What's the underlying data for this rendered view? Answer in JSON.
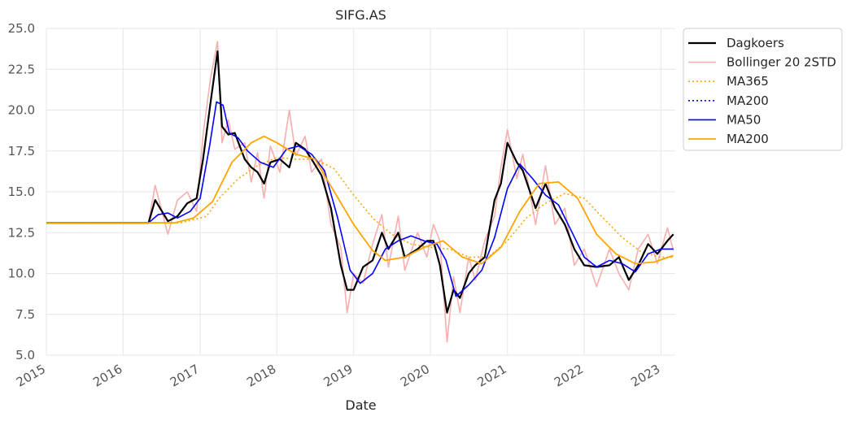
{
  "chart_data": {
    "type": "line",
    "title": "SIFG.AS",
    "xlabel": "Date",
    "ylabel": "",
    "xlim": [
      "2015-01-01",
      "2023-03-10"
    ],
    "ylim": [
      5.0,
      25.0
    ],
    "x_ticks": [
      "2015",
      "2016",
      "2017",
      "2018",
      "2019",
      "2020",
      "2021",
      "2022",
      "2023"
    ],
    "y_ticks": [
      "5.0",
      "7.5",
      "10.0",
      "12.5",
      "15.0",
      "17.5",
      "20.0",
      "22.5",
      "25.0"
    ],
    "grid": true,
    "legend_position": "outside-top-right",
    "series": [
      {
        "name": "Dagkoers",
        "color": "#000000",
        "style": "solid",
        "width": 2.2,
        "points": [
          [
            "2015-01-01",
            13.1
          ],
          [
            "2016-05-01",
            13.1
          ],
          [
            "2016-06-01",
            14.5
          ],
          [
            "2016-08-01",
            13.2
          ],
          [
            "2016-09-15",
            13.5
          ],
          [
            "2016-11-01",
            14.3
          ],
          [
            "2016-12-15",
            14.6
          ],
          [
            "2017-01-15",
            17.0
          ],
          [
            "2017-02-20",
            20.5
          ],
          [
            "2017-03-25",
            23.6
          ],
          [
            "2017-04-15",
            19.0
          ],
          [
            "2017-05-15",
            18.5
          ],
          [
            "2017-06-15",
            18.6
          ],
          [
            "2017-08-01",
            17.0
          ],
          [
            "2017-09-01",
            16.5
          ],
          [
            "2017-10-01",
            16.2
          ],
          [
            "2017-11-01",
            15.5
          ],
          [
            "2017-12-01",
            16.8
          ],
          [
            "2018-01-15",
            17.0
          ],
          [
            "2018-03-01",
            16.5
          ],
          [
            "2018-04-01",
            18.0
          ],
          [
            "2018-05-15",
            17.6
          ],
          [
            "2018-06-15",
            17.0
          ],
          [
            "2018-08-01",
            16.0
          ],
          [
            "2018-09-15",
            14.0
          ],
          [
            "2018-11-01",
            10.5
          ],
          [
            "2018-12-01",
            9.0
          ],
          [
            "2019-01-01",
            9.0
          ],
          [
            "2019-02-15",
            10.4
          ],
          [
            "2019-04-01",
            10.8
          ],
          [
            "2019-05-15",
            12.5
          ],
          [
            "2019-06-15",
            11.5
          ],
          [
            "2019-08-01",
            12.5
          ],
          [
            "2019-09-01",
            11.0
          ],
          [
            "2019-11-01",
            11.5
          ],
          [
            "2019-12-15",
            12.0
          ],
          [
            "2020-01-15",
            12.0
          ],
          [
            "2020-02-15",
            10.5
          ],
          [
            "2020-03-20",
            7.6
          ],
          [
            "2020-04-20",
            9.0
          ],
          [
            "2020-05-20",
            8.5
          ],
          [
            "2020-07-01",
            10.0
          ],
          [
            "2020-08-01",
            10.5
          ],
          [
            "2020-09-15",
            11.0
          ],
          [
            "2020-11-01",
            14.5
          ],
          [
            "2020-12-01",
            15.5
          ],
          [
            "2021-01-01",
            18.0
          ],
          [
            "2021-02-15",
            16.8
          ],
          [
            "2021-03-15",
            16.3
          ],
          [
            "2021-05-15",
            14.0
          ],
          [
            "2021-07-01",
            15.5
          ],
          [
            "2021-08-15",
            14.0
          ],
          [
            "2021-10-01",
            13.0
          ],
          [
            "2021-11-15",
            11.5
          ],
          [
            "2022-01-01",
            10.5
          ],
          [
            "2022-03-01",
            10.4
          ],
          [
            "2022-05-01",
            10.5
          ],
          [
            "2022-06-15",
            11.0
          ],
          [
            "2022-08-01",
            9.6
          ],
          [
            "2022-09-15",
            10.5
          ],
          [
            "2022-11-01",
            11.8
          ],
          [
            "2022-12-15",
            11.2
          ],
          [
            "2023-02-01",
            12.0
          ],
          [
            "2023-03-01",
            12.4
          ]
        ]
      },
      {
        "name": "Bollinger 20 2STD",
        "color": "#f7aeae",
        "style": "solid",
        "width": 1.6,
        "points": [
          [
            "2015-01-01",
            13.1
          ],
          [
            "2016-05-01",
            13.1
          ],
          [
            "2016-06-01",
            15.4
          ],
          [
            "2016-08-01",
            12.4
          ],
          [
            "2016-09-15",
            14.5
          ],
          [
            "2016-11-01",
            15.0
          ],
          [
            "2016-12-15",
            13.8
          ],
          [
            "2017-01-15",
            18.5
          ],
          [
            "2017-02-20",
            22.0
          ],
          [
            "2017-03-25",
            24.2
          ],
          [
            "2017-04-15",
            18.0
          ],
          [
            "2017-05-15",
            19.4
          ],
          [
            "2017-06-15",
            17.6
          ],
          [
            "2017-08-01",
            18.0
          ],
          [
            "2017-09-01",
            15.6
          ],
          [
            "2017-10-01",
            17.4
          ],
          [
            "2017-11-01",
            14.6
          ],
          [
            "2017-12-01",
            17.8
          ],
          [
            "2018-01-15",
            16.2
          ],
          [
            "2018-03-01",
            20.0
          ],
          [
            "2018-04-01",
            17.2
          ],
          [
            "2018-05-15",
            18.4
          ],
          [
            "2018-06-15",
            16.2
          ],
          [
            "2018-08-01",
            17.0
          ],
          [
            "2018-09-15",
            13.0
          ],
          [
            "2018-11-01",
            11.6
          ],
          [
            "2018-12-01",
            7.6
          ],
          [
            "2019-01-01",
            10.0
          ],
          [
            "2019-02-15",
            9.4
          ],
          [
            "2019-04-01",
            11.8
          ],
          [
            "2019-05-15",
            13.6
          ],
          [
            "2019-06-15",
            10.4
          ],
          [
            "2019-08-01",
            13.5
          ],
          [
            "2019-09-01",
            10.2
          ],
          [
            "2019-11-01",
            12.5
          ],
          [
            "2019-12-15",
            11.0
          ],
          [
            "2020-01-15",
            13.0
          ],
          [
            "2020-02-15",
            12.0
          ],
          [
            "2020-03-20",
            5.8
          ],
          [
            "2020-04-20",
            9.8
          ],
          [
            "2020-05-20",
            7.6
          ],
          [
            "2020-07-01",
            11.0
          ],
          [
            "2020-08-01",
            9.6
          ],
          [
            "2020-09-15",
            12.0
          ],
          [
            "2020-11-01",
            13.5
          ],
          [
            "2020-12-01",
            16.5
          ],
          [
            "2021-01-01",
            18.8
          ],
          [
            "2021-02-15",
            15.8
          ],
          [
            "2021-03-15",
            17.3
          ],
          [
            "2021-05-15",
            13.0
          ],
          [
            "2021-07-01",
            16.6
          ],
          [
            "2021-08-15",
            13.0
          ],
          [
            "2021-10-01",
            14.0
          ],
          [
            "2021-11-15",
            10.5
          ],
          [
            "2022-01-01",
            11.5
          ],
          [
            "2022-03-01",
            9.2
          ],
          [
            "2022-05-01",
            11.5
          ],
          [
            "2022-06-15",
            10.0
          ],
          [
            "2022-08-01",
            9.0
          ],
          [
            "2022-09-15",
            11.5
          ],
          [
            "2022-11-01",
            12.4
          ],
          [
            "2022-12-15",
            10.6
          ],
          [
            "2023-02-01",
            12.8
          ],
          [
            "2023-03-01",
            11.4
          ]
        ]
      },
      {
        "name": "MA365",
        "color": "#ffa500",
        "style": "dotted",
        "width": 1.6,
        "points": [
          [
            "2015-01-01",
            13.1
          ],
          [
            "2016-10-01",
            13.1
          ],
          [
            "2016-12-01",
            13.3
          ],
          [
            "2017-02-01",
            13.5
          ],
          [
            "2017-04-01",
            14.6
          ],
          [
            "2017-07-01",
            15.8
          ],
          [
            "2017-10-01",
            16.6
          ],
          [
            "2018-01-01",
            17.1
          ],
          [
            "2018-04-01",
            17.0
          ],
          [
            "2018-07-01",
            17.0
          ],
          [
            "2018-10-01",
            16.4
          ],
          [
            "2019-01-01",
            14.8
          ],
          [
            "2019-04-01",
            13.4
          ],
          [
            "2019-07-01",
            12.4
          ],
          [
            "2019-10-01",
            11.8
          ],
          [
            "2020-01-01",
            11.6
          ],
          [
            "2020-04-01",
            11.5
          ],
          [
            "2020-07-01",
            11.0
          ],
          [
            "2020-10-01",
            11.0
          ],
          [
            "2021-01-01",
            12.0
          ],
          [
            "2021-04-01",
            13.4
          ],
          [
            "2021-07-01",
            14.3
          ],
          [
            "2021-10-01",
            14.9
          ],
          [
            "2022-01-01",
            14.6
          ],
          [
            "2022-04-01",
            13.4
          ],
          [
            "2022-07-01",
            12.2
          ],
          [
            "2022-10-01",
            11.3
          ],
          [
            "2023-01-01",
            11.0
          ],
          [
            "2023-03-01",
            11.0
          ]
        ]
      },
      {
        "name": "MA200",
        "color": "#0000ff",
        "style": "dotted",
        "width": 1.6,
        "points": [
          [
            "2015-01-01",
            13.1
          ],
          [
            "2016-05-01",
            13.1
          ]
        ]
      },
      {
        "name": "MA50",
        "color": "#0000ff",
        "style": "solid",
        "width": 1.6,
        "points": [
          [
            "2015-01-01",
            13.1
          ],
          [
            "2016-05-01",
            13.1
          ],
          [
            "2016-06-15",
            13.6
          ],
          [
            "2016-08-01",
            13.7
          ],
          [
            "2016-09-15",
            13.4
          ],
          [
            "2016-11-15",
            13.8
          ],
          [
            "2017-01-01",
            14.6
          ],
          [
            "2017-02-15",
            17.8
          ],
          [
            "2017-03-20",
            20.5
          ],
          [
            "2017-04-20",
            20.3
          ],
          [
            "2017-05-20",
            18.6
          ],
          [
            "2017-07-01",
            18.3
          ],
          [
            "2017-08-15",
            17.5
          ],
          [
            "2017-10-15",
            16.8
          ],
          [
            "2017-12-15",
            16.5
          ],
          [
            "2018-02-15",
            17.6
          ],
          [
            "2018-04-15",
            17.8
          ],
          [
            "2018-06-15",
            17.3
          ],
          [
            "2018-08-15",
            16.3
          ],
          [
            "2018-10-15",
            13.5
          ],
          [
            "2018-12-15",
            10.2
          ],
          [
            "2019-02-01",
            9.4
          ],
          [
            "2019-04-01",
            10.0
          ],
          [
            "2019-06-01",
            11.5
          ],
          [
            "2019-08-01",
            12.0
          ],
          [
            "2019-10-01",
            12.3
          ],
          [
            "2019-12-01",
            12.0
          ],
          [
            "2020-02-01",
            11.8
          ],
          [
            "2020-03-15",
            10.8
          ],
          [
            "2020-05-01",
            8.6
          ],
          [
            "2020-07-01",
            9.3
          ],
          [
            "2020-09-01",
            10.2
          ],
          [
            "2020-11-01",
            12.2
          ],
          [
            "2021-01-01",
            15.2
          ],
          [
            "2021-03-01",
            16.7
          ],
          [
            "2021-05-01",
            15.8
          ],
          [
            "2021-07-01",
            14.8
          ],
          [
            "2021-09-01",
            14.2
          ],
          [
            "2021-11-01",
            12.6
          ],
          [
            "2022-01-01",
            11.0
          ],
          [
            "2022-03-01",
            10.4
          ],
          [
            "2022-05-01",
            10.8
          ],
          [
            "2022-07-01",
            10.6
          ],
          [
            "2022-09-01",
            10.1
          ],
          [
            "2022-11-01",
            11.2
          ],
          [
            "2023-01-01",
            11.5
          ],
          [
            "2023-03-01",
            11.5
          ]
        ]
      },
      {
        "name": "MA200",
        "color": "#ffa500",
        "style": "solid",
        "width": 1.8,
        "points": [
          [
            "2015-01-01",
            13.1
          ],
          [
            "2016-06-01",
            13.1
          ],
          [
            "2016-09-01",
            13.1
          ],
          [
            "2016-12-01",
            13.4
          ],
          [
            "2017-03-01",
            14.4
          ],
          [
            "2017-06-01",
            16.8
          ],
          [
            "2017-09-01",
            18.0
          ],
          [
            "2017-11-01",
            18.4
          ],
          [
            "2018-01-01",
            18.0
          ],
          [
            "2018-04-01",
            17.3
          ],
          [
            "2018-07-01",
            17.0
          ],
          [
            "2018-10-01",
            15.0
          ],
          [
            "2019-01-01",
            13.0
          ],
          [
            "2019-04-01",
            11.4
          ],
          [
            "2019-06-01",
            10.8
          ],
          [
            "2019-09-01",
            11.0
          ],
          [
            "2019-12-01",
            11.6
          ],
          [
            "2020-03-01",
            12.0
          ],
          [
            "2020-06-01",
            11.0
          ],
          [
            "2020-09-01",
            10.6
          ],
          [
            "2020-12-01",
            11.6
          ],
          [
            "2021-03-01",
            13.8
          ],
          [
            "2021-06-01",
            15.5
          ],
          [
            "2021-09-01",
            15.6
          ],
          [
            "2021-12-01",
            14.6
          ],
          [
            "2022-03-01",
            12.4
          ],
          [
            "2022-06-01",
            11.2
          ],
          [
            "2022-09-01",
            10.6
          ],
          [
            "2022-12-01",
            10.7
          ],
          [
            "2023-03-01",
            11.1
          ]
        ]
      }
    ]
  }
}
